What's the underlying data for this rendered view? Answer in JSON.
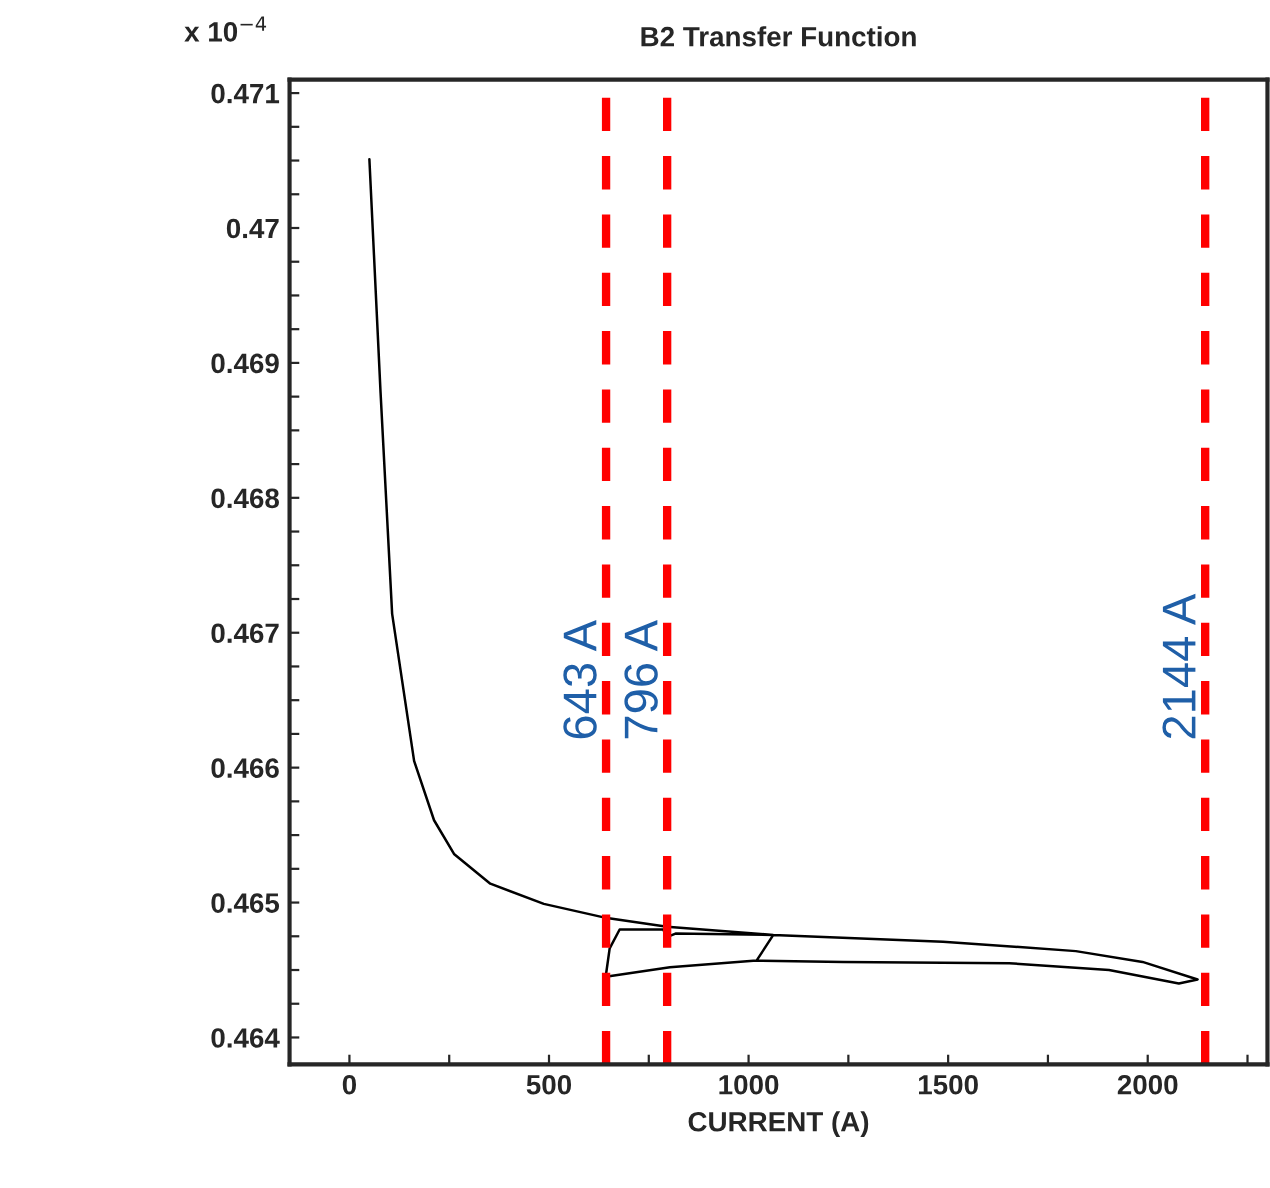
{
  "chart_data": {
    "type": "line",
    "title": "B2 Transfer Function",
    "xlabel": "CURRENT (A)",
    "annotations": [
      "x 10$^{−4}$"
    ],
    "x": [
      50,
      78,
      107,
      162,
      212,
      262,
      353,
      487,
      637,
      796,
      1062,
      1487,
      1820,
      1987,
      2125,
      2078,
      1903,
      1653,
      1237,
      1020,
      803,
      642,
      652,
      677,
      787,
      792,
      817,
      1062,
      1020
    ],
    "series": [
      {
        "color": "#000000",
        "values": [
          0.47051,
          0.46878,
          0.46714,
          0.46605,
          0.46561,
          0.46536,
          0.46514,
          0.46499,
          0.46489,
          0.46482,
          0.46476,
          0.46471,
          0.46464,
          0.46456,
          0.46443,
          0.4644,
          0.4645,
          0.46455,
          0.46456,
          0.46457,
          0.46452,
          0.46445,
          0.46466,
          0.4648,
          0.4648,
          0.46474,
          0.46477,
          0.46476,
          0.46457
        ]
      }
    ],
    "xlim": [
      -150,
      2300
    ],
    "ylim": [
      0.4638,
      0.4711
    ],
    "xticks": [
      0,
      {
        "value": 250,
        "label": null
      },
      500,
      {
        "value": 750,
        "label": null
      },
      1000,
      {
        "value": 1250,
        "label": null
      },
      1500,
      {
        "value": 1750,
        "label": null
      },
      2000,
      {
        "value": 2250,
        "label": null
      }
    ],
    "yticks": [
      0.464,
      {
        "value": 0.46425,
        "label": null
      },
      {
        "value": 0.4645,
        "label": null
      },
      {
        "value": 0.46475,
        "label": null
      },
      0.465,
      {
        "value": 0.46525,
        "label": null
      },
      {
        "value": 0.4655,
        "label": null
      },
      {
        "value": 0.46575,
        "label": null
      },
      0.466,
      {
        "value": 0.46625,
        "label": null
      },
      {
        "value": 0.4665,
        "label": null
      },
      {
        "value": 0.46675,
        "label": null
      },
      0.467,
      {
        "value": 0.46725,
        "label": null
      },
      {
        "value": 0.4675,
        "label": null
      },
      {
        "value": 0.46775,
        "label": null
      },
      0.468,
      {
        "value": 0.46825,
        "label": null
      },
      {
        "value": 0.4685,
        "label": null
      },
      {
        "value": 0.46875,
        "label": null
      },
      0.469,
      {
        "value": 0.46925,
        "label": null
      },
      {
        "value": 0.4695,
        "label": null
      },
      {
        "value": 0.46975,
        "label": null
      },
      0.47,
      {
        "value": 0.47025,
        "label": null
      },
      {
        "value": 0.4705,
        "label": null
      },
      {
        "value": 0.47075,
        "label": null
      },
      0.471
    ],
    "ref_lines": [
      {
        "axis": "x",
        "value": 643,
        "label": "643 A",
        "color": "#ff0000",
        "line_style": "dashed"
      },
      {
        "axis": "x",
        "value": 796,
        "label": "796 A",
        "color": "#ff0000",
        "line_style": "dashed"
      },
      {
        "axis": "x",
        "value": 2144,
        "label": "2144 A",
        "color": "#ff0000",
        "line_style": "dashed"
      }
    ],
    "grid": false,
    "marker": "none",
    "line_style": "solid"
  }
}
